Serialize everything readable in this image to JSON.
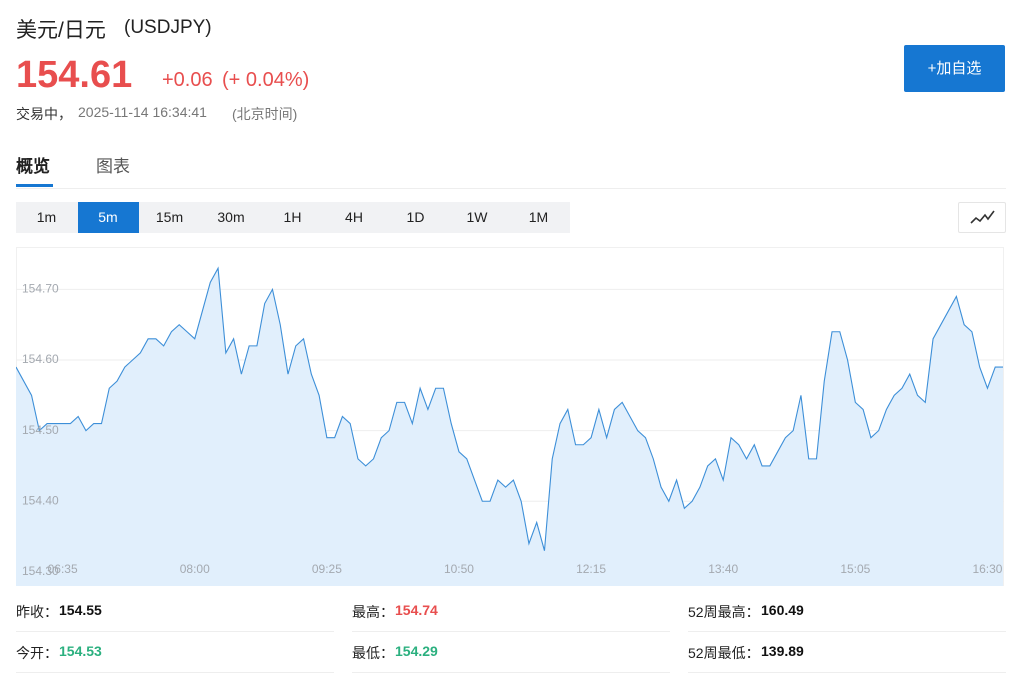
{
  "header": {
    "title": "美元/日元",
    "code": "(USDJPY)",
    "price": "154.61",
    "change": "+0.06",
    "change_pct": "(+ 0.04%)",
    "status": "交易中，",
    "time": "2025-11-14 16:34:41",
    "timezone": "(北京时间)",
    "button": "+加自选"
  },
  "tabs": {
    "items": [
      "概览",
      "图表"
    ],
    "active": 0
  },
  "intervals": {
    "items": [
      "1m",
      "5m",
      "15m",
      "30m",
      "1H",
      "4H",
      "1D",
      "1W",
      "1M"
    ],
    "active": 1
  },
  "chart_data": {
    "type": "area",
    "color": "#3d8fd8",
    "fill": "#e1effc",
    "grid": true,
    "categories": [
      null,
      null,
      null,
      null,
      null,
      null,
      "06:35",
      null,
      null,
      null,
      null,
      null,
      null,
      null,
      null,
      null,
      null,
      null,
      null,
      null,
      null,
      null,
      null,
      "08:00",
      null,
      null,
      null,
      null,
      null,
      null,
      null,
      null,
      null,
      null,
      null,
      null,
      null,
      null,
      null,
      null,
      "09:25",
      null,
      null,
      null,
      null,
      null,
      null,
      null,
      null,
      null,
      null,
      null,
      null,
      null,
      null,
      null,
      null,
      "10:50",
      null,
      null,
      null,
      null,
      null,
      null,
      null,
      null,
      null,
      null,
      null,
      null,
      null,
      null,
      null,
      null,
      "12:15",
      null,
      null,
      null,
      null,
      null,
      null,
      null,
      null,
      null,
      null,
      null,
      null,
      null,
      null,
      null,
      null,
      "13:40",
      null,
      null,
      null,
      null,
      null,
      null,
      null,
      null,
      null,
      null,
      null,
      null,
      null,
      null,
      null,
      null,
      "15:05",
      null,
      null,
      null,
      null,
      null,
      null,
      null,
      null,
      null,
      null,
      null,
      null,
      null,
      null,
      null,
      null,
      "16:30",
      null,
      null
    ],
    "values": [
      154.59,
      154.57,
      154.55,
      154.5,
      154.51,
      154.51,
      154.51,
      154.51,
      154.52,
      154.5,
      154.51,
      154.51,
      154.56,
      154.57,
      154.59,
      154.6,
      154.61,
      154.63,
      154.63,
      154.62,
      154.64,
      154.65,
      154.64,
      154.63,
      154.67,
      154.71,
      154.73,
      154.61,
      154.63,
      154.58,
      154.62,
      154.62,
      154.68,
      154.7,
      154.65,
      154.58,
      154.62,
      154.63,
      154.58,
      154.55,
      154.49,
      154.49,
      154.52,
      154.51,
      154.46,
      154.45,
      154.46,
      154.49,
      154.5,
      154.54,
      154.54,
      154.51,
      154.56,
      154.53,
      154.56,
      154.56,
      154.51,
      154.47,
      154.46,
      154.43,
      154.4,
      154.4,
      154.43,
      154.42,
      154.43,
      154.4,
      154.34,
      154.37,
      154.33,
      154.46,
      154.51,
      154.53,
      154.48,
      154.48,
      154.49,
      154.53,
      154.49,
      154.53,
      154.54,
      154.52,
      154.5,
      154.49,
      154.46,
      154.42,
      154.4,
      154.43,
      154.39,
      154.4,
      154.42,
      154.45,
      154.46,
      154.43,
      154.49,
      154.48,
      154.46,
      154.48,
      154.45,
      154.45,
      154.47,
      154.49,
      154.5,
      154.55,
      154.46,
      154.46,
      154.57,
      154.64,
      154.64,
      154.6,
      154.54,
      154.53,
      154.49,
      154.5,
      154.53,
      154.55,
      154.56,
      154.58,
      154.55,
      154.54,
      154.63,
      154.65,
      154.67,
      154.69,
      154.65,
      154.64,
      154.59,
      154.56,
      154.59,
      154.59
    ],
    "ylim": [
      154.28,
      154.76
    ],
    "yticks": [
      {
        "value": 154.3,
        "label": "154.30"
      },
      {
        "value": 154.4,
        "label": "154.40"
      },
      {
        "value": 154.5,
        "label": "154.50"
      },
      {
        "value": 154.6,
        "label": "154.60"
      },
      {
        "value": 154.7,
        "label": "154.70"
      }
    ]
  },
  "stats": [
    {
      "label": "昨收：",
      "value": "154.55",
      "color": "#111111"
    },
    {
      "label": "最高：",
      "value": "154.74",
      "color": "#e84e4e"
    },
    {
      "label": "52周最高：",
      "value": "160.49",
      "color": "#111111"
    },
    {
      "label": "今开：",
      "value": "154.53",
      "color": "#2bb07f"
    },
    {
      "label": "最低：",
      "value": "154.29",
      "color": "#2bb07f"
    },
    {
      "label": "52周最低：",
      "value": "139.89",
      "color": "#111111"
    }
  ]
}
